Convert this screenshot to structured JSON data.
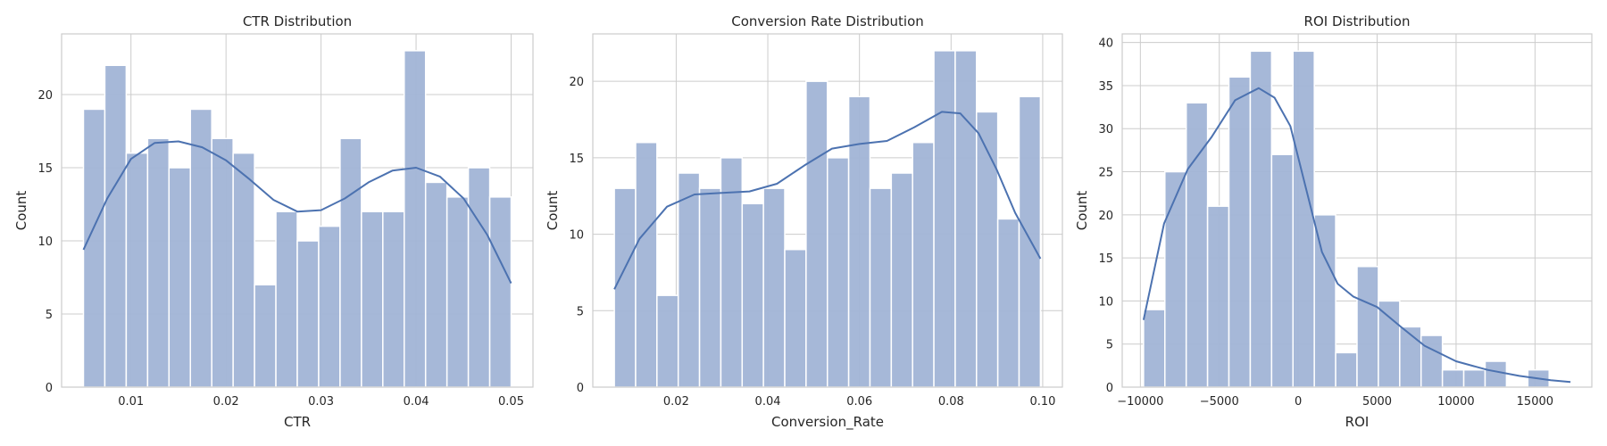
{
  "chart_data": [
    {
      "type": "bar",
      "subtype": "histogram_with_kde",
      "title": "CTR Distribution",
      "xlabel": "CTR",
      "ylabel": "Count",
      "xlim": [
        0.0027,
        0.0523
      ],
      "ylim": [
        0,
        24.15
      ],
      "xticks": [
        0.01,
        0.02,
        0.03,
        0.04,
        0.05
      ],
      "xtick_labels": [
        "0.01",
        "0.02",
        "0.03",
        "0.04",
        "0.05"
      ],
      "yticks": [
        0,
        5,
        10,
        15,
        20
      ],
      "ytick_labels": [
        "0",
        "5",
        "10",
        "15",
        "20"
      ],
      "bin_start": 0.005,
      "bin_end": 0.05,
      "values": [
        19,
        22,
        16,
        17,
        15,
        19,
        17,
        16,
        7,
        12,
        10,
        11,
        17,
        12,
        12,
        23,
        14,
        13,
        15,
        13
      ],
      "kde": {
        "x": [
          0.005,
          0.0075,
          0.01,
          0.0125,
          0.015,
          0.0175,
          0.02,
          0.0225,
          0.025,
          0.0275,
          0.03,
          0.0325,
          0.035,
          0.0375,
          0.04,
          0.0425,
          0.045,
          0.0475,
          0.05
        ],
        "y": [
          9.4,
          12.9,
          15.6,
          16.7,
          16.8,
          16.4,
          15.5,
          14.2,
          12.8,
          12.0,
          12.1,
          12.9,
          14.0,
          14.8,
          15.0,
          14.4,
          12.9,
          10.4,
          7.1
        ]
      },
      "grid": true,
      "colors": {
        "bar": "#a1b4d6",
        "bar_edge": "#ffffff",
        "kde": "#4c72b0"
      }
    },
    {
      "type": "bar",
      "subtype": "histogram_with_kde",
      "title": "Conversion Rate Distribution",
      "xlabel": "Conversion_Rate",
      "ylabel": "Count",
      "xlim": [
        0.0018,
        0.1043
      ],
      "ylim": [
        0,
        23.1
      ],
      "xticks": [
        0.02,
        0.04,
        0.06,
        0.08,
        0.1
      ],
      "xtick_labels": [
        "0.02",
        "0.04",
        "0.06",
        "0.08",
        "0.10"
      ],
      "yticks": [
        0,
        5,
        10,
        15,
        20
      ],
      "ytick_labels": [
        "0",
        "5",
        "10",
        "15",
        "20"
      ],
      "bin_start": 0.0065,
      "bin_end": 0.0995,
      "values": [
        13,
        16,
        6,
        14,
        13,
        15,
        12,
        13,
        9,
        20,
        15,
        19,
        13,
        14,
        16,
        22,
        22,
        18,
        11,
        19
      ],
      "kde": {
        "x": [
          0.0065,
          0.012,
          0.018,
          0.024,
          0.03,
          0.036,
          0.042,
          0.048,
          0.054,
          0.06,
          0.066,
          0.072,
          0.078,
          0.082,
          0.086,
          0.09,
          0.094,
          0.0995
        ],
        "y": [
          6.4,
          9.7,
          11.8,
          12.6,
          12.7,
          12.8,
          13.3,
          14.5,
          15.6,
          15.9,
          16.1,
          17.0,
          18.0,
          17.9,
          16.6,
          14.2,
          11.4,
          8.4
        ]
      },
      "grid": true,
      "colors": {
        "bar": "#a1b4d6",
        "bar_edge": "#ffffff",
        "kde": "#4c72b0"
      }
    },
    {
      "type": "bar",
      "subtype": "histogram_with_kde",
      "title": "ROI Distribution",
      "xlabel": "ROI",
      "ylabel": "Count",
      "xlim": [
        -11150,
        18600
      ],
      "ylim": [
        0,
        41
      ],
      "xticks": [
        -10000,
        -5000,
        0,
        5000,
        10000,
        15000
      ],
      "xtick_labels": [
        "−10000",
        "−5000",
        "0",
        "5000",
        "10000",
        "15000"
      ],
      "yticks": [
        0,
        5,
        10,
        15,
        20,
        25,
        30,
        35,
        40
      ],
      "ytick_labels": [
        "0",
        "5",
        "10",
        "15",
        "20",
        "25",
        "30",
        "35",
        "40"
      ],
      "bin_start": -9800,
      "bin_end": 17250,
      "values": [
        9,
        25,
        33,
        21,
        36,
        39,
        27,
        39,
        20,
        4,
        14,
        10,
        7,
        6,
        2,
        2,
        3,
        0,
        2,
        0
      ],
      "kde": {
        "x": [
          -9800,
          -8500,
          -7000,
          -5500,
          -4000,
          -2500,
          -1500,
          -500,
          500,
          1500,
          2500,
          3500,
          5000,
          6500,
          8000,
          10000,
          12000,
          14000,
          16000,
          17250
        ],
        "y": [
          7.8,
          19.0,
          25.3,
          29.0,
          33.3,
          34.7,
          33.6,
          30.3,
          23.0,
          15.7,
          12.0,
          10.5,
          9.3,
          7.0,
          4.8,
          3.0,
          2.0,
          1.3,
          0.8,
          0.6
        ]
      },
      "grid": true,
      "colors": {
        "bar": "#a1b4d6",
        "bar_edge": "#ffffff",
        "kde": "#4c72b0"
      }
    }
  ]
}
